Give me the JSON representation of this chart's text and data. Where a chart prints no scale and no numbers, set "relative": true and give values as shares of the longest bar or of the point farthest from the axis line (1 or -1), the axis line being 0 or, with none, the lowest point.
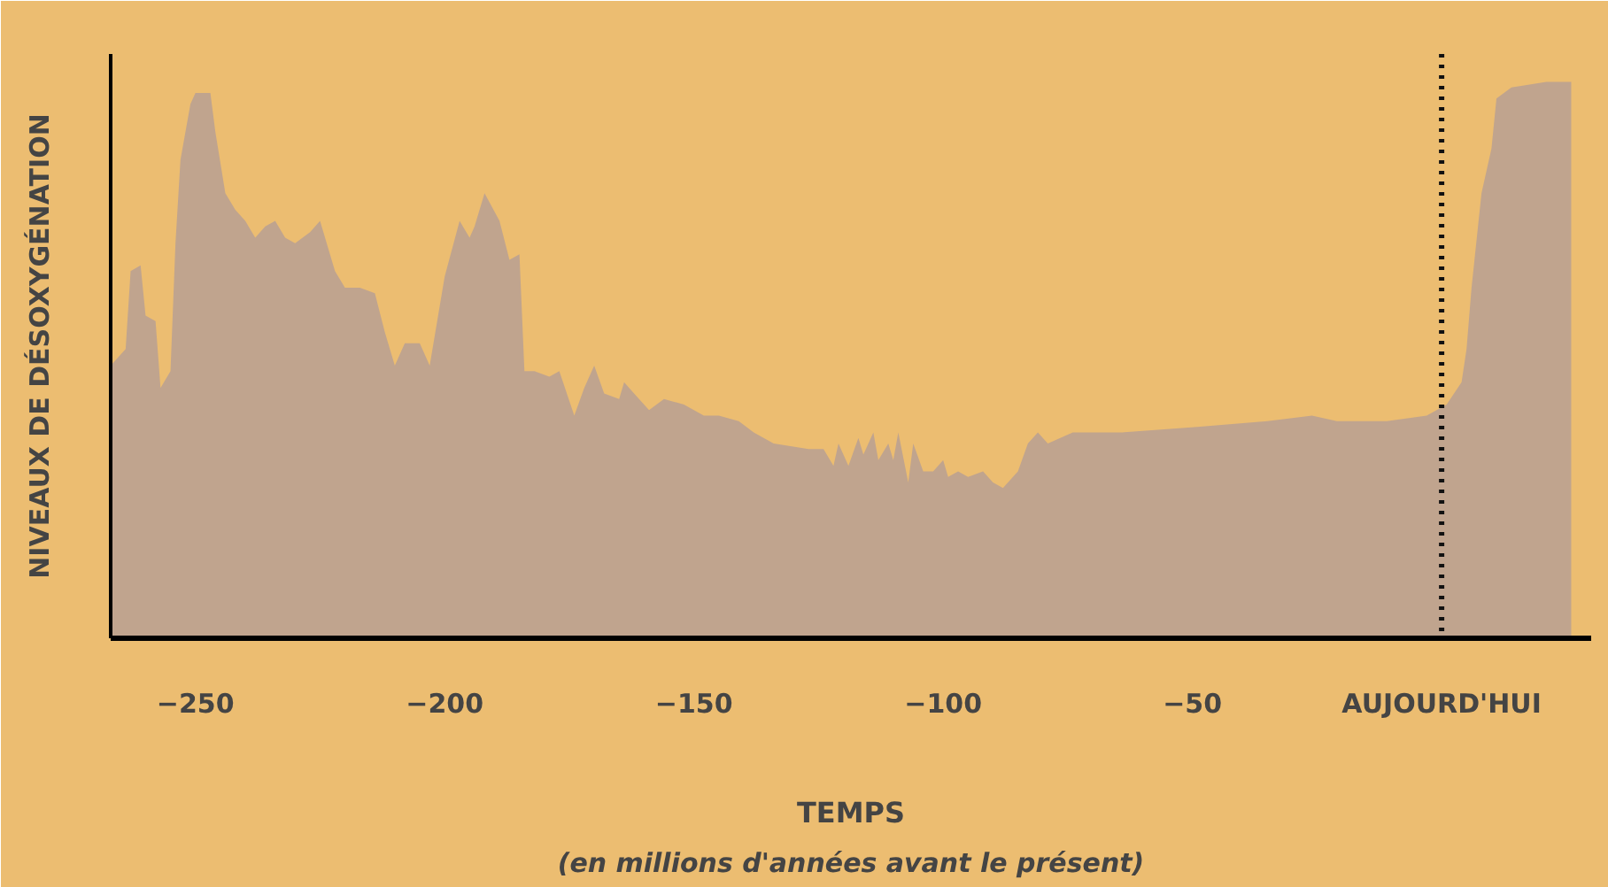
{
  "chart_data": {
    "type": "area",
    "relative": true,
    "xlabel": "TEMPS",
    "ylabel": "NIVEAUX DE DÉSOXYGÉNATION",
    "annotations": [
      "(en millions d'années avant le présent)"
    ],
    "xlim": [
      -267,
      30
    ],
    "xticks": [
      -250,
      -200,
      -150,
      -100,
      -50,
      {
        "value": 0,
        "label": "AUJOURD'HUI"
      }
    ],
    "grid": false,
    "ref_lines": [
      {
        "axis": "x",
        "value": 0,
        "label": null,
        "color": "#111111",
        "line_style": "dotted"
      }
    ],
    "x": [
      -267,
      -264,
      -263,
      -261,
      -260,
      -258,
      -257,
      -255,
      -254,
      -253,
      -251,
      -250,
      -247,
      -246,
      -244,
      -242,
      -240,
      -238,
      -236,
      -234,
      -232,
      -230,
      -227,
      -225,
      -222,
      -220,
      -217,
      -214,
      -212,
      -210,
      -208,
      -205,
      -203,
      -200,
      -197,
      -195,
      -194,
      -192,
      -189,
      -187,
      -185,
      -184,
      -182,
      -179,
      -177,
      -174,
      -172,
      -170,
      -168,
      -165,
      -164,
      -162,
      -159,
      -156,
      -152,
      -148,
      -145,
      -141,
      -138,
      -134,
      -127,
      -124,
      -122,
      -121,
      -119,
      -117,
      -116,
      -114,
      -113,
      -111,
      -110,
      -109,
      -107,
      -106,
      -104,
      -102,
      -100,
      -99,
      -97,
      -95,
      -92,
      -90,
      -88,
      -85,
      -83,
      -81,
      -79,
      -74,
      -64,
      -49,
      -35,
      -26,
      -21,
      -11,
      -3,
      1,
      4,
      5,
      6,
      8,
      10,
      11,
      14,
      21,
      26
    ],
    "series": [
      {
        "color": "#c0a48e",
        "values": [
          0.49,
          0.52,
          0.66,
          0.67,
          0.58,
          0.57,
          0.45,
          0.48,
          0.71,
          0.86,
          0.96,
          0.98,
          0.98,
          0.91,
          0.8,
          0.77,
          0.75,
          0.72,
          0.74,
          0.75,
          0.72,
          0.71,
          0.73,
          0.75,
          0.66,
          0.63,
          0.63,
          0.62,
          0.55,
          0.49,
          0.53,
          0.53,
          0.49,
          0.65,
          0.75,
          0.72,
          0.74,
          0.8,
          0.75,
          0.68,
          0.69,
          0.48,
          0.48,
          0.47,
          0.48,
          0.4,
          0.45,
          0.49,
          0.44,
          0.43,
          0.46,
          0.44,
          0.41,
          0.43,
          0.42,
          0.4,
          0.4,
          0.39,
          0.37,
          0.35,
          0.34,
          0.34,
          0.31,
          0.35,
          0.31,
          0.36,
          0.33,
          0.37,
          0.32,
          0.35,
          0.32,
          0.37,
          0.28,
          0.35,
          0.3,
          0.3,
          0.32,
          0.29,
          0.3,
          0.29,
          0.3,
          0.28,
          0.27,
          0.3,
          0.35,
          0.37,
          0.35,
          0.37,
          0.37,
          0.38,
          0.39,
          0.4,
          0.39,
          0.39,
          0.4,
          0.42,
          0.46,
          0.52,
          0.63,
          0.8,
          0.88,
          0.97,
          0.99,
          1,
          1
        ]
      }
    ]
  }
}
